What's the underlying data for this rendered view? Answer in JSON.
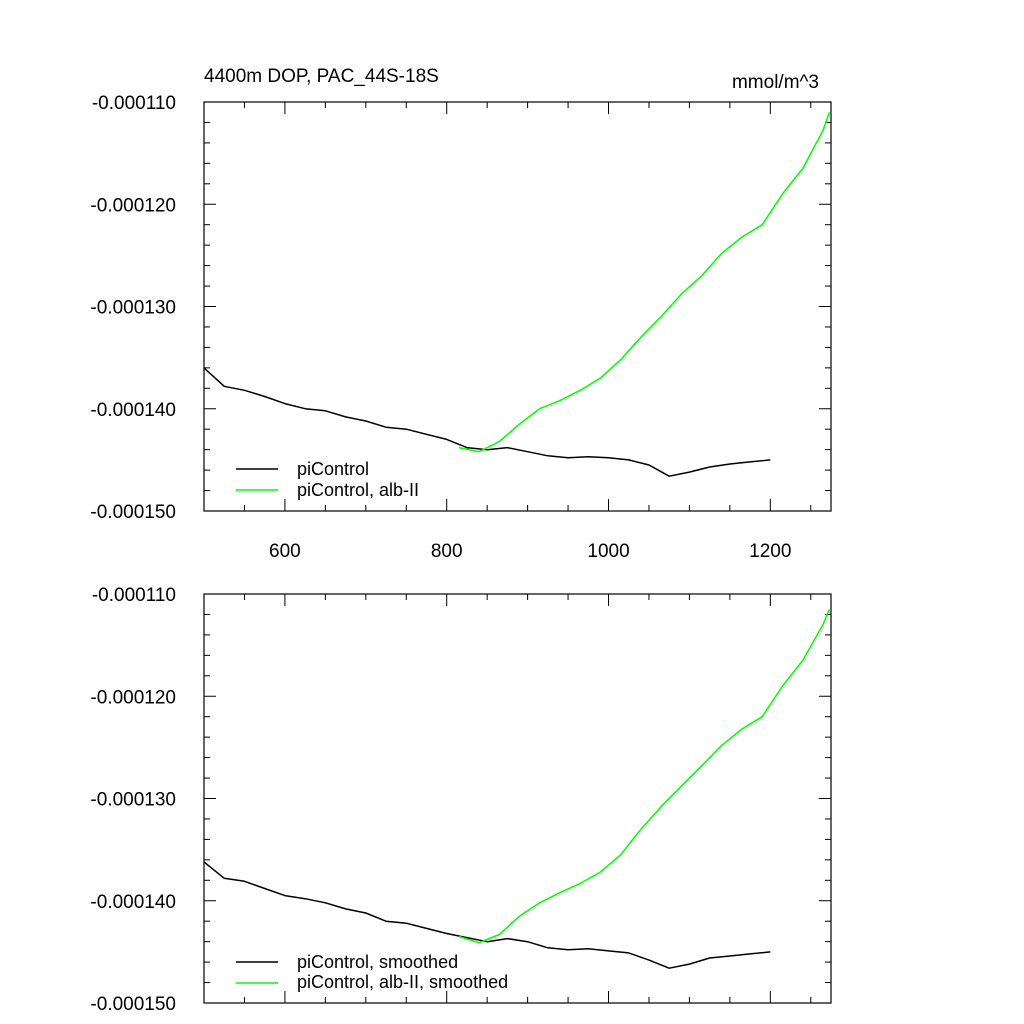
{
  "chart_data": [
    {
      "type": "line",
      "title": "4400m DOP, PAC_44S-18S",
      "units": "mmol/m^3",
      "xlim": [
        500,
        1275
      ],
      "ylim": [
        -0.00015,
        -0.00011
      ],
      "xticks": [
        600,
        800,
        1000,
        1200
      ],
      "xtick_labels": [
        "600",
        "800",
        "1000",
        "1200"
      ],
      "yticks": [
        -0.00011,
        -0.00012,
        -0.00013,
        -0.00014,
        -0.00015
      ],
      "ytick_labels": [
        "-0.000110",
        "-0.000120",
        "-0.000130",
        "-0.000140",
        "-0.000150"
      ],
      "legend_position": "bottom-left",
      "series": [
        {
          "name": "piControl",
          "color": "#000000",
          "x": [
            500,
            525,
            550,
            575,
            600,
            625,
            650,
            675,
            700,
            725,
            750,
            775,
            800,
            825,
            850,
            875,
            900,
            925,
            950,
            975,
            1000,
            1025,
            1050,
            1075,
            1100,
            1125,
            1150,
            1175,
            1200
          ],
          "y": [
            -0.000136,
            -0.0001378,
            -0.0001382,
            -0.0001388,
            -0.0001395,
            -0.00014,
            -0.0001402,
            -0.0001408,
            -0.0001412,
            -0.0001418,
            -0.000142,
            -0.0001425,
            -0.000143,
            -0.0001438,
            -0.000144,
            -0.0001438,
            -0.0001442,
            -0.0001446,
            -0.0001448,
            -0.0001447,
            -0.0001448,
            -0.000145,
            -0.0001455,
            -0.0001466,
            -0.0001462,
            -0.0001457,
            -0.0001454,
            -0.0001452,
            -0.000145
          ]
        },
        {
          "name": "piControl, alb-II",
          "color": "#00ff00",
          "x": [
            815,
            840,
            865,
            890,
            915,
            940,
            965,
            990,
            1015,
            1040,
            1065,
            1090,
            1115,
            1140,
            1165,
            1190,
            1215,
            1240,
            1265,
            1273
          ],
          "y": [
            -0.0001438,
            -0.0001442,
            -0.0001432,
            -0.0001415,
            -0.00014,
            -0.0001392,
            -0.0001382,
            -0.000137,
            -0.0001352,
            -0.000133,
            -0.000131,
            -0.0001288,
            -0.000127,
            -0.0001248,
            -0.0001232,
            -0.000122,
            -0.000119,
            -0.0001165,
            -0.0001128,
            -0.000111
          ]
        }
      ]
    },
    {
      "type": "line",
      "xlim": [
        500,
        1275
      ],
      "ylim": [
        -0.00015,
        -0.00011
      ],
      "xticks": [
        600,
        800,
        1000,
        1200
      ],
      "yticks": [
        -0.00011,
        -0.00012,
        -0.00013,
        -0.00014,
        -0.00015
      ],
      "ytick_labels": [
        "-0.000110",
        "-0.000120",
        "-0.000130",
        "-0.000140",
        "-0.000150"
      ],
      "legend_position": "bottom-left",
      "series": [
        {
          "name": "piControl, smoothed",
          "color": "#000000",
          "x": [
            500,
            525,
            550,
            575,
            600,
            625,
            650,
            675,
            700,
            725,
            750,
            775,
            800,
            825,
            850,
            875,
            900,
            925,
            950,
            975,
            1000,
            1025,
            1050,
            1075,
            1100,
            1125,
            1150,
            1175,
            1200
          ],
          "y": [
            -0.0001362,
            -0.0001378,
            -0.0001381,
            -0.0001388,
            -0.0001395,
            -0.0001398,
            -0.0001402,
            -0.0001408,
            -0.0001412,
            -0.000142,
            -0.0001422,
            -0.0001427,
            -0.0001432,
            -0.0001436,
            -0.000144,
            -0.0001437,
            -0.000144,
            -0.0001446,
            -0.0001448,
            -0.0001447,
            -0.0001449,
            -0.0001451,
            -0.0001458,
            -0.0001466,
            -0.0001462,
            -0.0001456,
            -0.0001454,
            -0.0001452,
            -0.000145
          ]
        },
        {
          "name": "piControl, alb-II, smoothed",
          "color": "#00ff00",
          "x": [
            815,
            840,
            865,
            890,
            915,
            940,
            965,
            990,
            1015,
            1040,
            1065,
            1090,
            1115,
            1140,
            1165,
            1190,
            1215,
            1240,
            1265,
            1273
          ],
          "y": [
            -0.0001435,
            -0.0001441,
            -0.0001433,
            -0.0001415,
            -0.0001402,
            -0.0001392,
            -0.0001383,
            -0.0001372,
            -0.0001355,
            -0.000133,
            -0.0001308,
            -0.0001288,
            -0.0001268,
            -0.0001248,
            -0.0001232,
            -0.000122,
            -0.000119,
            -0.0001165,
            -0.000113,
            -0.0001115
          ]
        }
      ]
    }
  ]
}
